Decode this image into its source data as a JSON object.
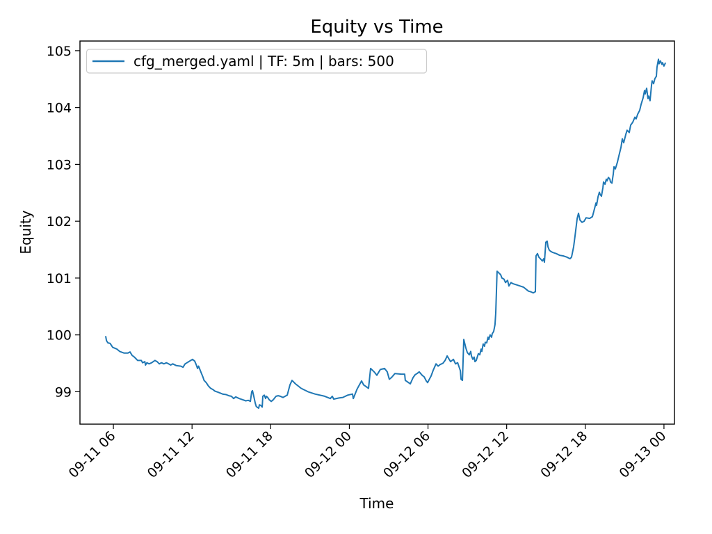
{
  "figure": {
    "background": "#ffffff"
  },
  "chart_data": {
    "type": "line",
    "title": "Equity vs Time",
    "xlabel": "Time",
    "ylabel": "Equity",
    "grid": false,
    "legend_position": "upper left",
    "legend_label": "cfg_merged.yaml | TF: 5m | bars: 500",
    "colors": {
      "line": "#1f77b4",
      "axis": "#000000",
      "legend_border": "#cccccc",
      "legend_bg": "#ffffff"
    },
    "x_unit": "hours since 09-11 00:00",
    "xlim": [
      3.45,
      48.8
    ],
    "ylim": [
      98.43,
      105.17
    ],
    "y_ticks": [
      99,
      100,
      101,
      102,
      103,
      104,
      105
    ],
    "x_ticks": [
      {
        "t": 6,
        "label": "09-11 06"
      },
      {
        "t": 12,
        "label": "09-11 12"
      },
      {
        "t": 18,
        "label": "09-11 18"
      },
      {
        "t": 24,
        "label": "09-12 00"
      },
      {
        "t": 30,
        "label": "09-12 06"
      },
      {
        "t": 36,
        "label": "09-12 12"
      },
      {
        "t": 42,
        "label": "09-12 18"
      },
      {
        "t": 48,
        "label": "09-13 00"
      }
    ],
    "series": [
      {
        "name": "cfg_merged.yaml | TF: 5m | bars: 500",
        "timeframe": "5m",
        "bars": 500,
        "points": [
          [
            5.42,
            99.97
          ],
          [
            5.47,
            99.9
          ],
          [
            5.58,
            99.86
          ],
          [
            5.75,
            99.85
          ],
          [
            5.95,
            99.78
          ],
          [
            6.27,
            99.75
          ],
          [
            6.48,
            99.71
          ],
          [
            6.82,
            99.68
          ],
          [
            7.1,
            99.68
          ],
          [
            7.27,
            99.7
          ],
          [
            7.43,
            99.64
          ],
          [
            7.6,
            99.61
          ],
          [
            7.85,
            99.55
          ],
          [
            8.13,
            99.55
          ],
          [
            8.23,
            99.51
          ],
          [
            8.4,
            99.53
          ],
          [
            8.45,
            99.47
          ],
          [
            8.55,
            99.51
          ],
          [
            8.72,
            99.49
          ],
          [
            8.92,
            99.51
          ],
          [
            9.17,
            99.55
          ],
          [
            9.33,
            99.53
          ],
          [
            9.5,
            99.49
          ],
          [
            9.67,
            99.51
          ],
          [
            9.85,
            99.49
          ],
          [
            10.05,
            99.51
          ],
          [
            10.21,
            99.49
          ],
          [
            10.37,
            99.47
          ],
          [
            10.53,
            99.49
          ],
          [
            10.8,
            99.46
          ],
          [
            11.15,
            99.45
          ],
          [
            11.31,
            99.43
          ],
          [
            11.47,
            99.49
          ],
          [
            11.75,
            99.53
          ],
          [
            12.03,
            99.57
          ],
          [
            12.2,
            99.54
          ],
          [
            12.33,
            99.47
          ],
          [
            12.42,
            99.41
          ],
          [
            12.5,
            99.45
          ],
          [
            12.67,
            99.35
          ],
          [
            12.83,
            99.26
          ],
          [
            12.92,
            99.2
          ],
          [
            13.08,
            99.16
          ],
          [
            13.25,
            99.1
          ],
          [
            13.42,
            99.06
          ],
          [
            13.58,
            99.04
          ],
          [
            13.75,
            99.01
          ],
          [
            14.0,
            98.99
          ],
          [
            14.33,
            98.96
          ],
          [
            14.6,
            98.95
          ],
          [
            14.8,
            98.93
          ],
          [
            15.0,
            98.92
          ],
          [
            15.17,
            98.88
          ],
          [
            15.33,
            98.91
          ],
          [
            15.6,
            98.88
          ],
          [
            15.85,
            98.86
          ],
          [
            16.1,
            98.84
          ],
          [
            16.29,
            98.85
          ],
          [
            16.45,
            98.83
          ],
          [
            16.55,
            99.0
          ],
          [
            16.61,
            99.02
          ],
          [
            16.71,
            98.92
          ],
          [
            16.82,
            98.8
          ],
          [
            16.9,
            98.74
          ],
          [
            17.08,
            98.71
          ],
          [
            17.14,
            98.77
          ],
          [
            17.24,
            98.76
          ],
          [
            17.35,
            98.73
          ],
          [
            17.4,
            98.92
          ],
          [
            17.51,
            98.94
          ],
          [
            17.61,
            98.88
          ],
          [
            17.67,
            98.92
          ],
          [
            17.77,
            98.9
          ],
          [
            17.88,
            98.86
          ],
          [
            18.04,
            98.83
          ],
          [
            18.2,
            98.86
          ],
          [
            18.41,
            98.92
          ],
          [
            18.57,
            98.93
          ],
          [
            18.73,
            98.92
          ],
          [
            18.94,
            98.9
          ],
          [
            19.1,
            98.92
          ],
          [
            19.26,
            98.94
          ],
          [
            19.47,
            99.12
          ],
          [
            19.63,
            99.2
          ],
          [
            19.89,
            99.14
          ],
          [
            20.32,
            99.06
          ],
          [
            20.85,
            99.0
          ],
          [
            21.38,
            98.96
          ],
          [
            22.12,
            98.92
          ],
          [
            22.55,
            98.88
          ],
          [
            22.7,
            98.92
          ],
          [
            22.81,
            98.87
          ],
          [
            23.2,
            98.89
          ],
          [
            23.5,
            98.9
          ],
          [
            23.87,
            98.94
          ],
          [
            24.24,
            98.96
          ],
          [
            24.3,
            98.88
          ],
          [
            24.6,
            99.05
          ],
          [
            24.93,
            99.19
          ],
          [
            25.09,
            99.12
          ],
          [
            25.46,
            99.06
          ],
          [
            25.62,
            99.41
          ],
          [
            25.89,
            99.35
          ],
          [
            26.1,
            99.29
          ],
          [
            26.36,
            99.39
          ],
          [
            26.68,
            99.41
          ],
          [
            26.89,
            99.35
          ],
          [
            27.05,
            99.22
          ],
          [
            27.21,
            99.25
          ],
          [
            27.48,
            99.32
          ],
          [
            27.96,
            99.31
          ],
          [
            28.22,
            99.31
          ],
          [
            28.27,
            99.2
          ],
          [
            28.65,
            99.14
          ],
          [
            28.86,
            99.25
          ],
          [
            29.02,
            99.3
          ],
          [
            29.17,
            99.32
          ],
          [
            29.33,
            99.35
          ],
          [
            29.55,
            99.29
          ],
          [
            29.71,
            99.26
          ],
          [
            29.87,
            99.19
          ],
          [
            29.97,
            99.16
          ],
          [
            30.08,
            99.21
          ],
          [
            30.24,
            99.28
          ],
          [
            30.4,
            99.38
          ],
          [
            30.61,
            99.49
          ],
          [
            30.77,
            99.45
          ],
          [
            30.93,
            99.48
          ],
          [
            31.14,
            99.5
          ],
          [
            31.3,
            99.55
          ],
          [
            31.46,
            99.63
          ],
          [
            31.72,
            99.53
          ],
          [
            31.94,
            99.57
          ],
          [
            32.1,
            99.49
          ],
          [
            32.26,
            99.51
          ],
          [
            32.47,
            99.37
          ],
          [
            32.52,
            99.22
          ],
          [
            32.63,
            99.2
          ],
          [
            32.73,
            99.92
          ],
          [
            32.89,
            99.77
          ],
          [
            33.0,
            99.69
          ],
          [
            33.15,
            99.65
          ],
          [
            33.26,
            99.71
          ],
          [
            33.31,
            99.63
          ],
          [
            33.42,
            99.57
          ],
          [
            33.52,
            99.61
          ],
          [
            33.58,
            99.53
          ],
          [
            33.68,
            99.55
          ],
          [
            33.84,
            99.67
          ],
          [
            33.95,
            99.65
          ],
          [
            34.05,
            99.75
          ],
          [
            34.11,
            99.71
          ],
          [
            34.21,
            99.84
          ],
          [
            34.31,
            99.8
          ],
          [
            34.37,
            99.87
          ],
          [
            34.48,
            99.86
          ],
          [
            34.58,
            99.96
          ],
          [
            34.64,
            99.92
          ],
          [
            34.74,
            100.0
          ],
          [
            34.85,
            99.96
          ],
          [
            34.9,
            100.02
          ],
          [
            35.01,
            100.06
          ],
          [
            35.11,
            100.18
          ],
          [
            35.17,
            100.39
          ],
          [
            35.27,
            101.12
          ],
          [
            35.54,
            101.06
          ],
          [
            35.64,
            101.0
          ],
          [
            35.8,
            100.98
          ],
          [
            35.91,
            100.92
          ],
          [
            36.07,
            100.96
          ],
          [
            36.17,
            100.86
          ],
          [
            36.33,
            100.92
          ],
          [
            36.49,
            100.9
          ],
          [
            36.76,
            100.88
          ],
          [
            37.02,
            100.86
          ],
          [
            37.29,
            100.84
          ],
          [
            37.5,
            100.8
          ],
          [
            37.66,
            100.77
          ],
          [
            37.82,
            100.76
          ],
          [
            38.03,
            100.74
          ],
          [
            38.19,
            100.76
          ],
          [
            38.24,
            101.39
          ],
          [
            38.35,
            101.43
          ],
          [
            38.45,
            101.37
          ],
          [
            38.61,
            101.33
          ],
          [
            38.72,
            101.3
          ],
          [
            38.83,
            101.34
          ],
          [
            38.88,
            101.28
          ],
          [
            38.99,
            101.63
          ],
          [
            39.09,
            101.65
          ],
          [
            39.15,
            101.55
          ],
          [
            39.25,
            101.49
          ],
          [
            39.36,
            101.47
          ],
          [
            39.52,
            101.45
          ],
          [
            39.78,
            101.43
          ],
          [
            40.05,
            101.4
          ],
          [
            40.31,
            101.39
          ],
          [
            40.58,
            101.37
          ],
          [
            40.84,
            101.34
          ],
          [
            40.95,
            101.37
          ],
          [
            41.11,
            101.55
          ],
          [
            41.22,
            101.75
          ],
          [
            41.38,
            102.05
          ],
          [
            41.48,
            102.14
          ],
          [
            41.59,
            102.02
          ],
          [
            41.75,
            101.98
          ],
          [
            41.91,
            102.0
          ],
          [
            42.06,
            102.06
          ],
          [
            42.33,
            102.05
          ],
          [
            42.54,
            102.08
          ],
          [
            42.7,
            102.22
          ],
          [
            42.81,
            102.32
          ],
          [
            42.86,
            102.28
          ],
          [
            42.97,
            102.43
          ],
          [
            43.07,
            102.51
          ],
          [
            43.13,
            102.47
          ],
          [
            43.23,
            102.44
          ],
          [
            43.34,
            102.59
          ],
          [
            43.39,
            102.69
          ],
          [
            43.5,
            102.65
          ],
          [
            43.6,
            102.74
          ],
          [
            43.66,
            102.71
          ],
          [
            43.76,
            102.77
          ],
          [
            43.87,
            102.74
          ],
          [
            43.92,
            102.69
          ],
          [
            44.03,
            102.67
          ],
          [
            44.13,
            102.83
          ],
          [
            44.19,
            102.96
          ],
          [
            44.29,
            102.92
          ],
          [
            44.4,
            103.0
          ],
          [
            44.45,
            103.04
          ],
          [
            44.56,
            103.15
          ],
          [
            44.72,
            103.3
          ],
          [
            44.82,
            103.45
          ],
          [
            44.93,
            103.38
          ],
          [
            45.09,
            103.53
          ],
          [
            45.19,
            103.6
          ],
          [
            45.35,
            103.56
          ],
          [
            45.46,
            103.69
          ],
          [
            45.62,
            103.74
          ],
          [
            45.78,
            103.83
          ],
          [
            45.88,
            103.8
          ],
          [
            45.99,
            103.88
          ],
          [
            46.15,
            103.95
          ],
          [
            46.25,
            104.05
          ],
          [
            46.41,
            104.17
          ],
          [
            46.52,
            104.3
          ],
          [
            46.57,
            104.24
          ],
          [
            46.68,
            104.34
          ],
          [
            46.78,
            104.16
          ],
          [
            46.84,
            104.2
          ],
          [
            46.94,
            104.12
          ],
          [
            47.05,
            104.39
          ],
          [
            47.1,
            104.47
          ],
          [
            47.21,
            104.42
          ],
          [
            47.31,
            104.51
          ],
          [
            47.42,
            104.55
          ],
          [
            47.47,
            104.71
          ],
          [
            47.58,
            104.85
          ],
          [
            47.63,
            104.77
          ],
          [
            47.73,
            104.82
          ],
          [
            47.84,
            104.76
          ],
          [
            47.89,
            104.79
          ],
          [
            48.0,
            104.73
          ],
          [
            48.1,
            104.78
          ]
        ]
      }
    ]
  }
}
